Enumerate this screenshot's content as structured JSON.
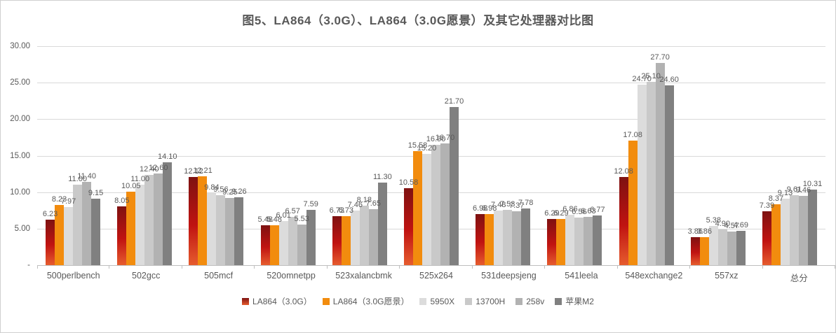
{
  "title": "图5、LA864（3.0G）、LA864（3.0G愿景）及其它处理器对比图",
  "colors": {
    "text": "#595959",
    "gridline": "#d9d9d9",
    "axis": "#bfbfbf",
    "frame_border": "#cfcfcf"
  },
  "chart_data": {
    "type": "bar",
    "title": "图5、LA864（3.0G）、LA864（3.0G愿景）及其它处理器对比图",
    "categories": [
      "500perlbench",
      "502gcc",
      "505mcf",
      "520omnetpp",
      "523xalancbmk",
      "525x264",
      "531deepsjeng",
      "541leela",
      "548exchange2",
      "557xz",
      "总分"
    ],
    "series": [
      {
        "name": "LA864（3.0G）",
        "color": "#c01311",
        "gradient": [
          "#7e1211",
          "#c01311",
          "#e65c2e"
        ],
        "values": [
          6.23,
          8.05,
          12.12,
          5.48,
          6.73,
          10.58,
          6.98,
          6.29,
          12.08,
          3.86,
          7.39
        ]
      },
      {
        "name": "LA864（3.0G愿景）",
        "color": "#f28c0e",
        "values": [
          8.23,
          10.05,
          12.21,
          5.48,
          6.73,
          15.58,
          6.98,
          6.29,
          17.08,
          3.86,
          8.37
        ]
      },
      {
        "name": "5950X",
        "color": "#dcdcdc",
        "values": [
          7.97,
          11.0,
          9.84,
          6.01,
          7.46,
          15.2,
          7.48,
          6.86,
          24.7,
          5.38,
          9.13
        ]
      },
      {
        "name": "13700H",
        "color": "#c9c9c9",
        "values": [
          11.0,
          12.4,
          9.56,
          6.57,
          8.18,
          16.5,
          7.53,
          6.56,
          25.1,
          4.9,
          9.61
        ]
      },
      {
        "name": "258v",
        "color": "#b2b2b2",
        "values": [
          11.4,
          12.6,
          9.25,
          5.53,
          7.65,
          16.7,
          7.37,
          6.63,
          27.7,
          4.57,
          9.46
        ]
      },
      {
        "name": "苹果M2",
        "color": "#808080",
        "values": [
          9.15,
          14.1,
          9.26,
          7.59,
          11.3,
          21.7,
          7.78,
          6.77,
          24.6,
          4.69,
          10.31
        ]
      }
    ],
    "ylim": [
      0,
      30
    ],
    "ytick_step": 5,
    "yticks": [
      "30.00",
      "25.00",
      "20.00",
      "15.00",
      "10.00",
      "5.00",
      "-"
    ],
    "value_label_format": "0.00",
    "grid": true,
    "legend_position": "bottom"
  }
}
